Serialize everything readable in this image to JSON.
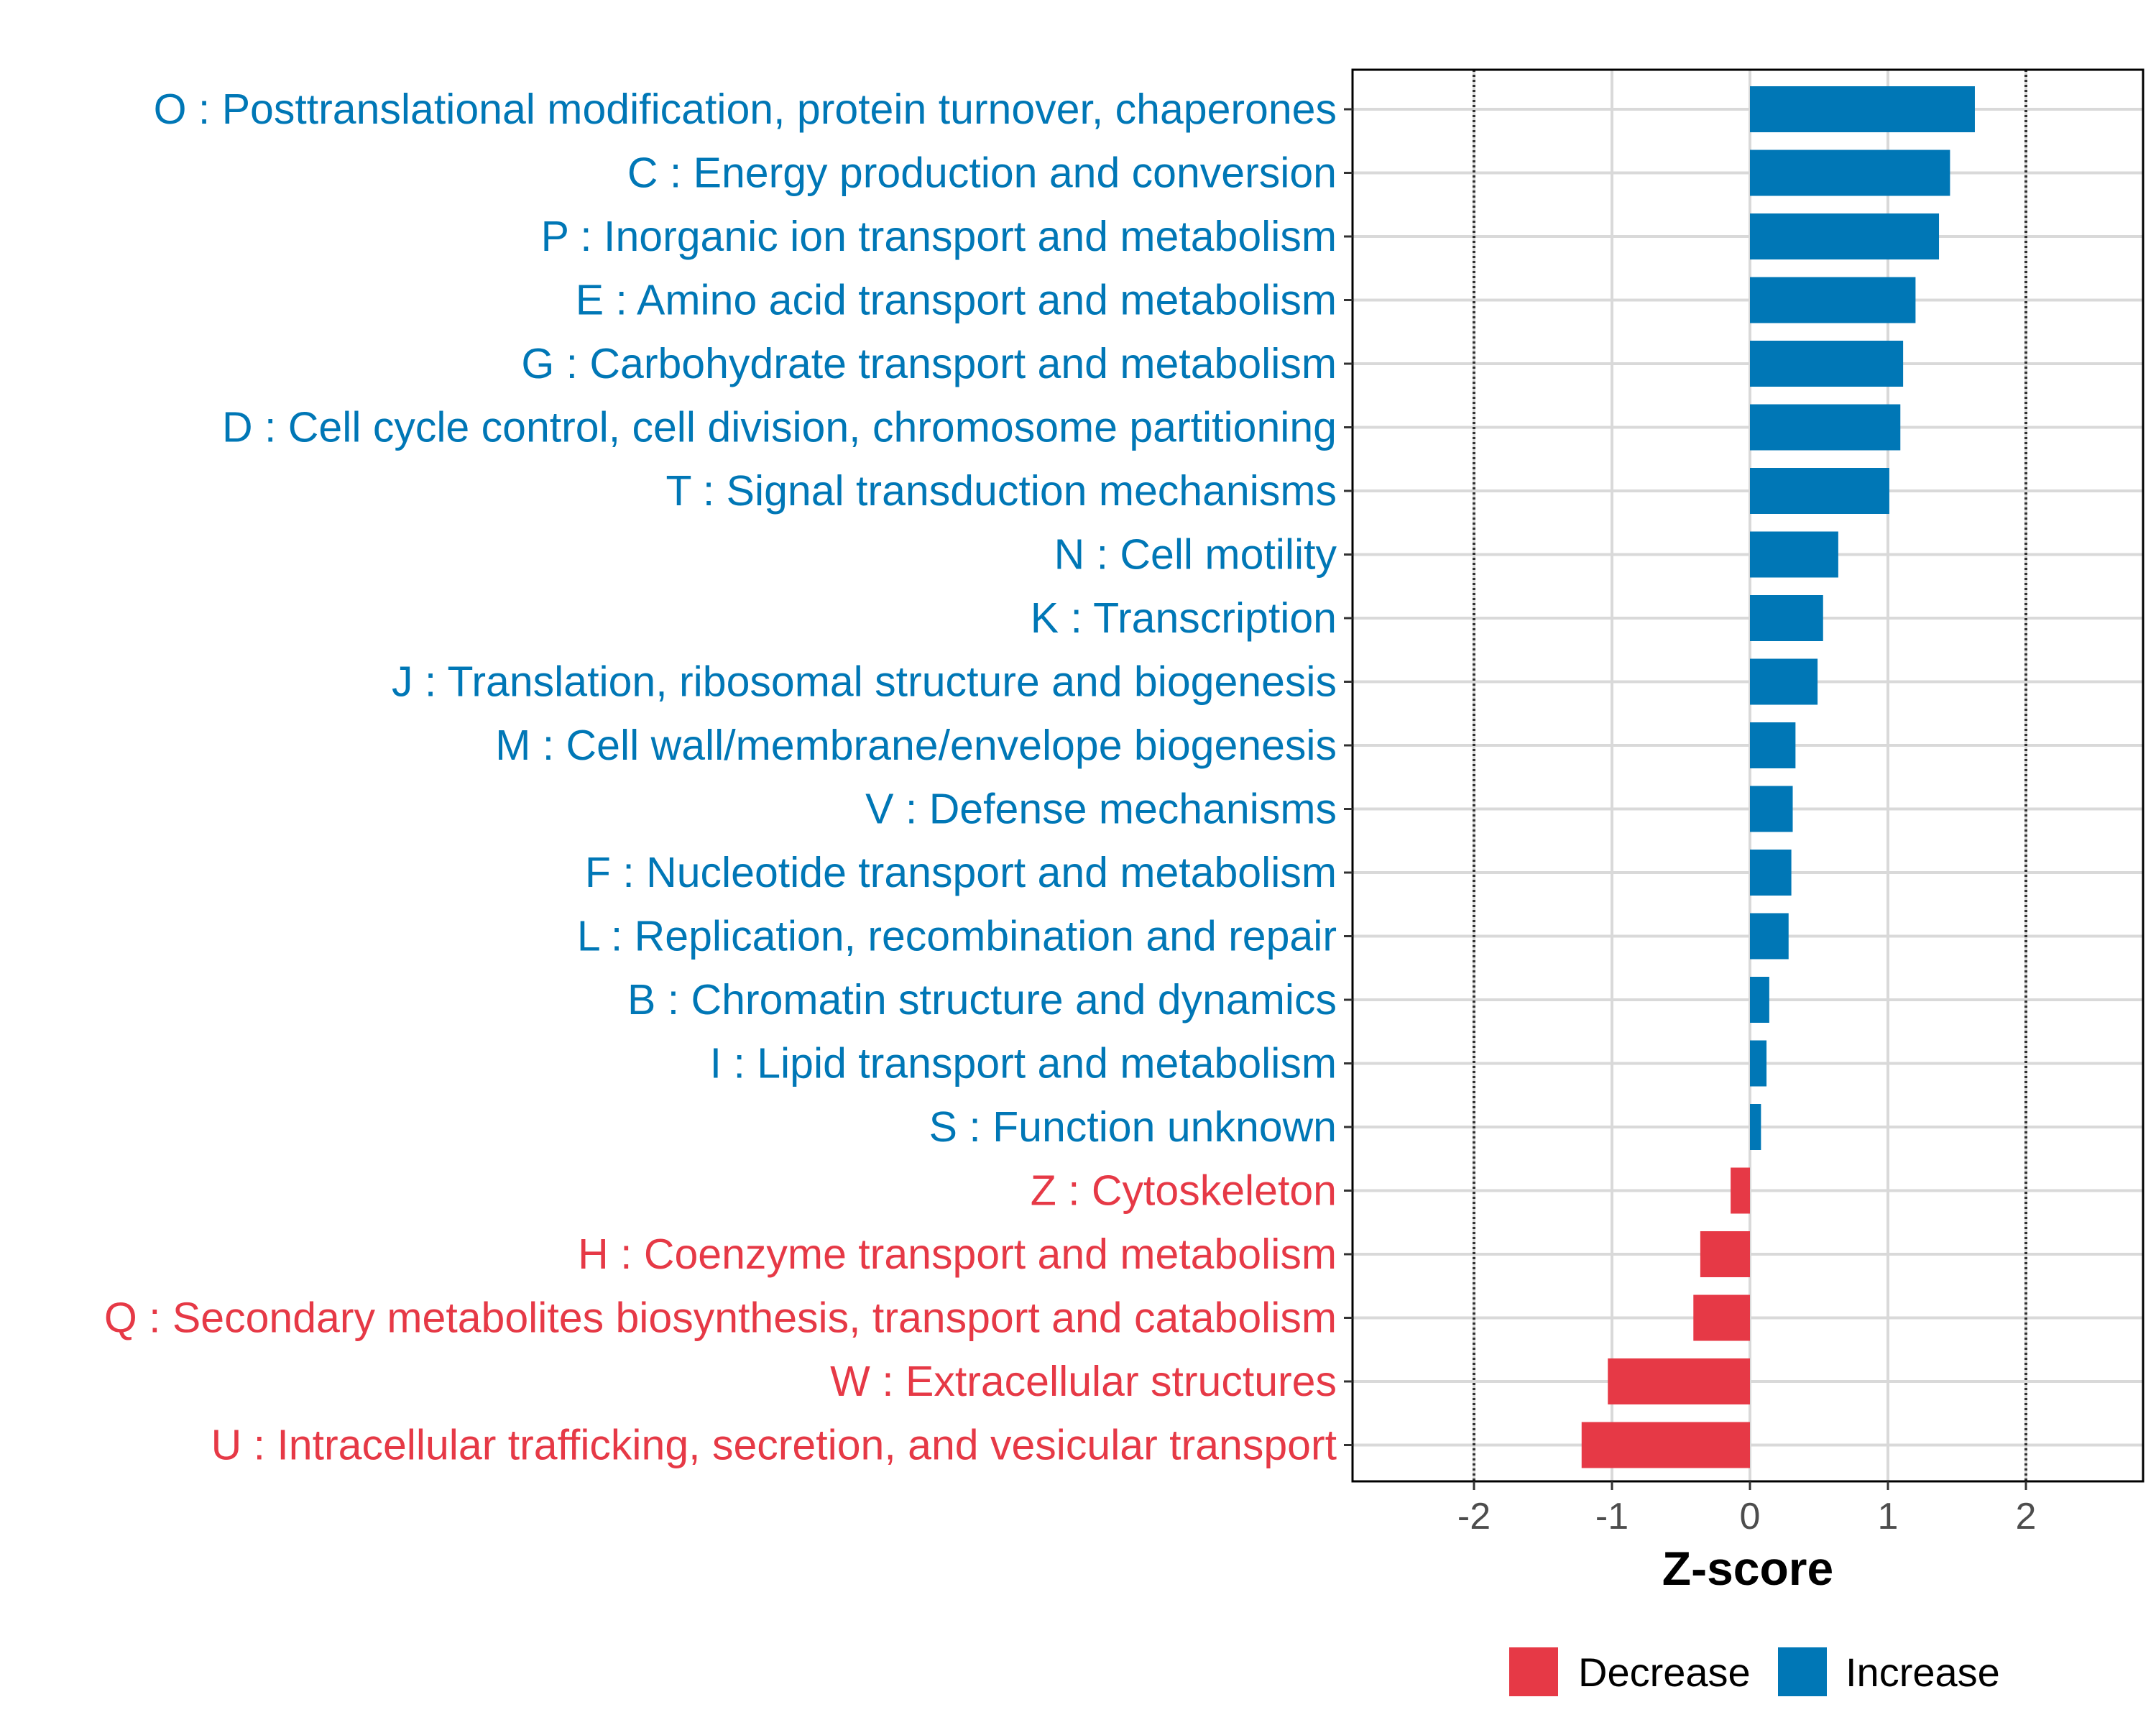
{
  "chart_data": {
    "type": "bar",
    "orientation": "horizontal",
    "title": "",
    "xlabel": "Z-score",
    "ylabel": "",
    "xlim": [
      -2.88,
      2.88
    ],
    "xticks": [
      -2,
      -1,
      0,
      1,
      2
    ],
    "xtick_labels": [
      "-2",
      "-1",
      "0",
      "1",
      "2"
    ],
    "reference_lines": [
      -2,
      2
    ],
    "grid": true,
    "categories": [
      "O : Posttranslational modification, protein turnover, chaperones",
      "C : Energy production and conversion",
      "P : Inorganic ion transport and metabolism",
      "E : Amino acid transport and metabolism",
      "G : Carbohydrate transport and metabolism",
      "D : Cell cycle control, cell division, chromosome partitioning",
      "T : Signal transduction mechanisms",
      "N : Cell motility",
      "K : Transcription",
      "J : Translation, ribosomal structure and biogenesis",
      "M : Cell wall/membrane/envelope biogenesis",
      "V : Defense mechanisms",
      "F : Nucleotide transport and metabolism",
      "L : Replication, recombination and repair",
      "B : Chromatin structure and dynamics",
      "I : Lipid transport and metabolism",
      "S : Function unknown",
      "Z : Cytoskeleton",
      "H : Coenzyme transport and metabolism",
      "Q : Secondary metabolites biosynthesis, transport and catabolism",
      "W : Extracellular structures",
      "U : Intracellular trafficking, secretion, and vesicular transport"
    ],
    "values": [
      1.63,
      1.45,
      1.37,
      1.2,
      1.11,
      1.09,
      1.01,
      0.64,
      0.53,
      0.49,
      0.33,
      0.31,
      0.3,
      0.28,
      0.14,
      0.12,
      0.08,
      -0.14,
      -0.36,
      -0.41,
      -1.03,
      -1.22
    ],
    "groups": [
      "Increase",
      "Increase",
      "Increase",
      "Increase",
      "Increase",
      "Increase",
      "Increase",
      "Increase",
      "Increase",
      "Increase",
      "Increase",
      "Increase",
      "Increase",
      "Increase",
      "Increase",
      "Increase",
      "Increase",
      "Decrease",
      "Decrease",
      "Decrease",
      "Decrease",
      "Decrease"
    ],
    "legend": {
      "position": "bottom",
      "entries": [
        {
          "label": "Decrease",
          "color": "#E63946"
        },
        {
          "label": "Increase",
          "color": "#0077B6"
        }
      ]
    },
    "colors": {
      "Increase": "#0077B6",
      "Decrease": "#E63946"
    }
  }
}
